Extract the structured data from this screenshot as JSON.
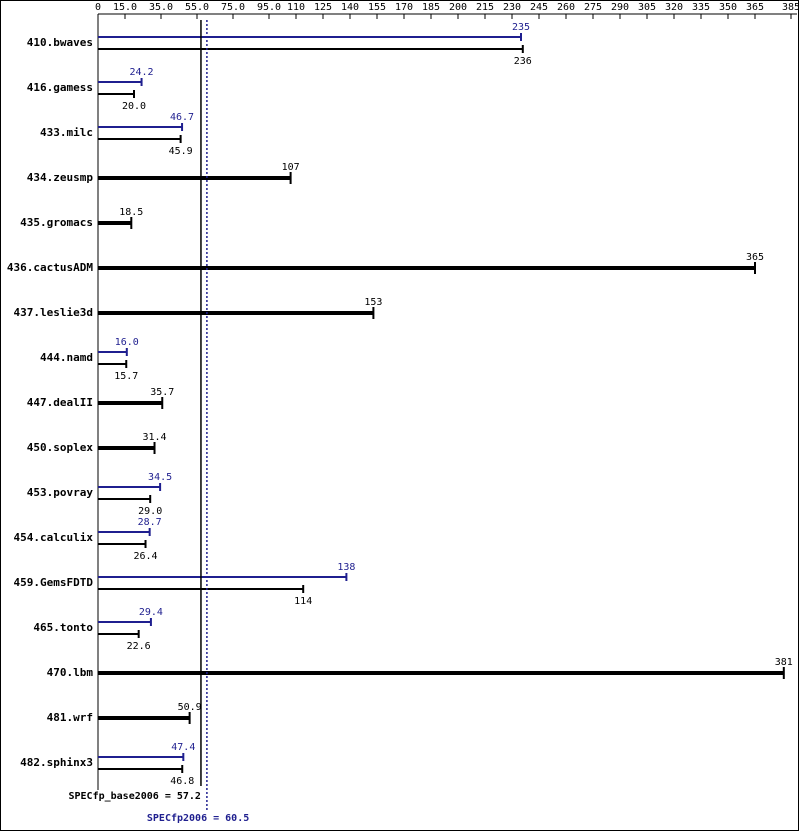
{
  "chart_data": {
    "type": "bar",
    "orientation": "horizontal",
    "categories": [
      "410.bwaves",
      "416.gamess",
      "433.milc",
      "434.zeusmp",
      "435.gromacs",
      "436.cactusADM",
      "437.leslie3d",
      "444.namd",
      "447.dealII",
      "450.soplex",
      "453.povray",
      "454.calculix",
      "459.GemsFDTD",
      "465.tonto",
      "470.lbm",
      "481.wrf",
      "482.sphinx3"
    ],
    "series": [
      {
        "color": "#000000",
        "values": [
          236,
          20.0,
          45.9,
          107,
          18.5,
          365,
          153,
          15.7,
          35.7,
          31.4,
          29.0,
          26.4,
          114,
          22.6,
          381,
          50.9,
          46.8
        ],
        "value_labels": [
          "236",
          "20.0",
          "45.9",
          "107",
          "18.5",
          "365",
          "153",
          "15.7",
          "35.7",
          "31.4",
          "29.0",
          "26.4",
          "114",
          "22.6",
          "381",
          "50.9",
          "46.8"
        ]
      },
      {
        "color": "#1f1f8f",
        "values": [
          235,
          24.2,
          46.7,
          null,
          null,
          null,
          null,
          16.0,
          null,
          null,
          34.5,
          28.7,
          138,
          29.4,
          null,
          null,
          47.4
        ],
        "value_labels": [
          "235",
          "24.2",
          "46.7",
          null,
          null,
          null,
          null,
          "16.0",
          null,
          null,
          "34.5",
          "28.7",
          "138",
          "29.4",
          null,
          null,
          "47.4"
        ]
      }
    ],
    "xlim": [
      0,
      385
    ],
    "xticks": [
      0,
      {
        "value": 15,
        "label": "15.0"
      },
      {
        "value": 35,
        "label": "35.0"
      },
      {
        "value": 55,
        "label": "55.0"
      },
      {
        "value": 75,
        "label": "75.0"
      },
      {
        "value": 95,
        "label": "95.0"
      },
      110,
      125,
      140,
      155,
      170,
      185,
      200,
      215,
      230,
      245,
      260,
      275,
      290,
      305,
      320,
      335,
      350,
      365,
      385
    ],
    "reference_lines": [
      {
        "value": 57.2,
        "text": "SPECfp_base2006 = 57.2",
        "color": "#000000",
        "style": "solid"
      },
      {
        "value": 60.5,
        "text": "SPECfp2006 = 60.5",
        "color": "#1f1f8f",
        "style": "dotted"
      }
    ]
  }
}
